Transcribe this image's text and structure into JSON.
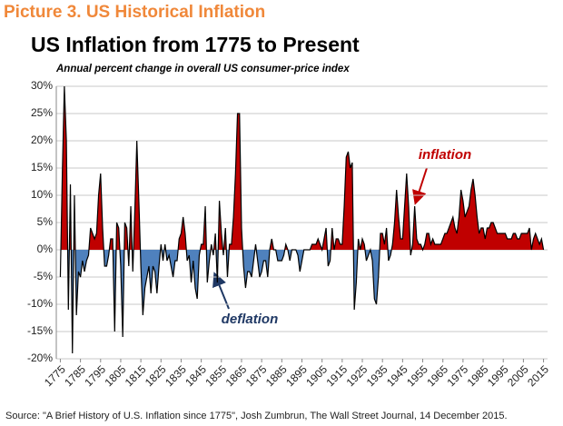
{
  "chart_data": {
    "type": "area",
    "heading": "Picture 3. US Historical Inflation",
    "title": "US Inflation from 1775 to Present",
    "subtitle": "Annual percent change in overall US consumer-price index",
    "source": "Source: \"A Brief History of U.S. Inflation since 1775\", Josh Zumbrun, The Wall Street Journal, 14 December 2015.",
    "annotations": [
      {
        "text": "inflation",
        "color": "#c00000"
      },
      {
        "text": "deflation",
        "color": "#1f3864"
      }
    ],
    "positive_color": "#c00000",
    "negative_color": "#4f81bd",
    "line_color": "#000000",
    "grid": true,
    "x": [
      1775,
      1776,
      1777,
      1778,
      1779,
      1780,
      1781,
      1782,
      1783,
      1784,
      1785,
      1786,
      1787,
      1788,
      1789,
      1790,
      1791,
      1792,
      1793,
      1794,
      1795,
      1796,
      1797,
      1798,
      1799,
      1800,
      1801,
      1802,
      1803,
      1804,
      1805,
      1806,
      1807,
      1808,
      1809,
      1810,
      1811,
      1812,
      1813,
      1814,
      1815,
      1816,
      1817,
      1818,
      1819,
      1820,
      1821,
      1822,
      1823,
      1824,
      1825,
      1826,
      1827,
      1828,
      1829,
      1830,
      1831,
      1832,
      1833,
      1834,
      1835,
      1836,
      1837,
      1838,
      1839,
      1840,
      1841,
      1842,
      1843,
      1844,
      1845,
      1846,
      1847,
      1848,
      1849,
      1850,
      1851,
      1852,
      1853,
      1854,
      1855,
      1856,
      1857,
      1858,
      1859,
      1860,
      1861,
      1862,
      1863,
      1864,
      1865,
      1866,
      1867,
      1868,
      1869,
      1870,
      1871,
      1872,
      1873,
      1874,
      1875,
      1876,
      1877,
      1878,
      1879,
      1880,
      1881,
      1882,
      1883,
      1884,
      1885,
      1886,
      1887,
      1888,
      1889,
      1890,
      1891,
      1892,
      1893,
      1894,
      1895,
      1896,
      1897,
      1898,
      1899,
      1900,
      1901,
      1902,
      1903,
      1904,
      1905,
      1906,
      1907,
      1908,
      1909,
      1910,
      1911,
      1912,
      1913,
      1914,
      1915,
      1916,
      1917,
      1918,
      1919,
      1920,
      1921,
      1922,
      1923,
      1924,
      1925,
      1926,
      1927,
      1928,
      1929,
      1930,
      1931,
      1932,
      1933,
      1934,
      1935,
      1936,
      1937,
      1938,
      1939,
      1940,
      1941,
      1942,
      1943,
      1944,
      1945,
      1946,
      1947,
      1948,
      1949,
      1950,
      1951,
      1952,
      1953,
      1954,
      1955,
      1956,
      1957,
      1958,
      1959,
      1960,
      1961,
      1962,
      1963,
      1964,
      1965,
      1966,
      1967,
      1968,
      1969,
      1970,
      1971,
      1972,
      1973,
      1974,
      1975,
      1976,
      1977,
      1978,
      1979,
      1980,
      1981,
      1982,
      1983,
      1984,
      1985,
      1986,
      1987,
      1988,
      1989,
      1990,
      1991,
      1992,
      1993,
      1994,
      1995,
      1996,
      1997,
      1998,
      1999,
      2000,
      2001,
      2002,
      2003,
      2004,
      2005,
      2006,
      2007,
      2008,
      2009,
      2010,
      2011,
      2012,
      2013,
      2014,
      2015
    ],
    "series": [
      {
        "values": [
          -5,
          14,
          30,
          20,
          -11,
          12,
          -19,
          10,
          -12,
          -4,
          -5,
          -2,
          -4,
          -2,
          -1,
          4,
          3,
          2,
          3,
          10,
          14,
          4,
          -3,
          -3,
          -1,
          2,
          2,
          -15,
          5,
          4,
          -3,
          -16,
          5,
          4,
          -3,
          8,
          -4,
          7,
          20,
          9,
          -3,
          -12,
          -7,
          -5,
          -3,
          -8,
          -3,
          -4,
          -8,
          -3,
          1,
          -2,
          1,
          -2,
          -1,
          -3,
          -5,
          -2,
          -2,
          2,
          3,
          6,
          3,
          -2,
          -1,
          -6,
          -2,
          -7,
          -9,
          -1,
          1,
          1,
          8,
          -6,
          -2,
          1,
          -1,
          3,
          -6,
          9,
          3,
          -1,
          4,
          -5,
          1,
          1,
          6,
          14,
          25,
          25,
          4,
          -3,
          -7,
          -4,
          -4,
          -5,
          -2,
          1,
          -2,
          -5,
          -4,
          -2,
          -2,
          -5,
          0,
          2,
          0,
          0,
          -2,
          -2,
          -2,
          -1,
          1,
          0,
          -2,
          0,
          0,
          0,
          -1,
          -4,
          -2,
          0,
          0,
          0,
          0,
          1,
          1,
          1,
          2,
          1,
          0,
          2,
          4,
          -3,
          -2,
          4,
          0,
          2,
          2,
          1,
          1,
          8,
          17,
          18,
          15,
          16,
          -11,
          -6,
          2,
          0,
          2,
          1,
          -2,
          -1,
          0,
          -2,
          -9,
          -10,
          -5,
          3,
          3,
          1,
          4,
          -2,
          -1,
          1,
          5,
          11,
          6,
          2,
          2,
          8,
          14,
          8,
          -1,
          1,
          8,
          2,
          1,
          1,
          0,
          1,
          3,
          3,
          1,
          2,
          1,
          1,
          1,
          1,
          2,
          3,
          3,
          4,
          5,
          6,
          4,
          3,
          6,
          11,
          9,
          6,
          7,
          8,
          11,
          13,
          10,
          6,
          3,
          4,
          4,
          2,
          4,
          4,
          5,
          5,
          4,
          3,
          3,
          3,
          3,
          3,
          2,
          2,
          2,
          3,
          3,
          2,
          2,
          3,
          3,
          3,
          3,
          4,
          0,
          2,
          3,
          2,
          1,
          2,
          0
        ]
      }
    ],
    "xlim": [
      1773,
      2017
    ],
    "xticks": [
      1775,
      1785,
      1795,
      1805,
      1815,
      1825,
      1835,
      1845,
      1855,
      1865,
      1875,
      1885,
      1895,
      1905,
      1915,
      1925,
      1935,
      1945,
      1955,
      1965,
      1975,
      1985,
      1995,
      2005,
      2015
    ],
    "ylim": [
      -20,
      30
    ],
    "yticks": [
      {
        "value": -20,
        "label": "-20%"
      },
      {
        "value": -15,
        "label": "-15%"
      },
      {
        "value": -10,
        "label": "-10%"
      },
      {
        "value": -5,
        "label": "-5%"
      },
      {
        "value": 0,
        "label": "0%"
      },
      {
        "value": 5,
        "label": "5%"
      },
      {
        "value": 10,
        "label": "10%"
      },
      {
        "value": 15,
        "label": "15%"
      },
      {
        "value": 20,
        "label": "20%"
      },
      {
        "value": 25,
        "label": "25%"
      },
      {
        "value": 30,
        "label": "30%"
      }
    ]
  }
}
